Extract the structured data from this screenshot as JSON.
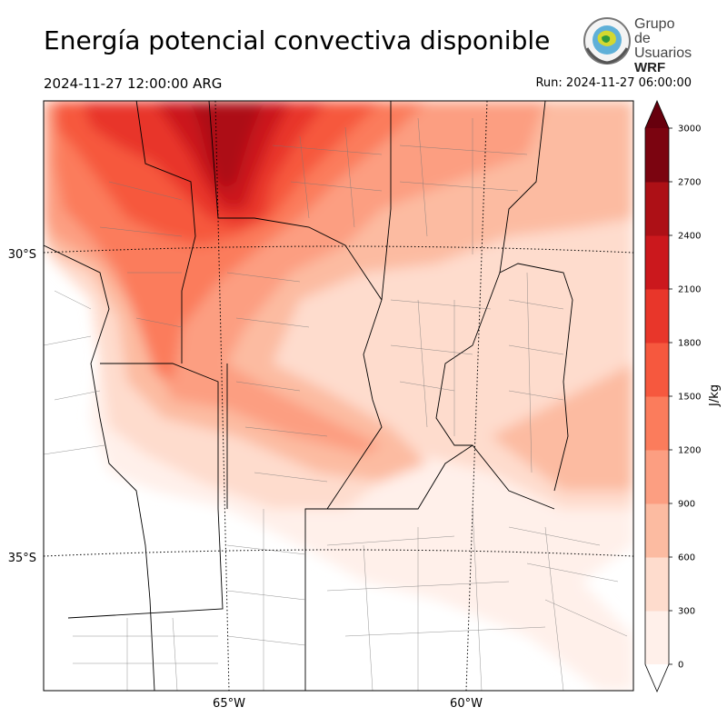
{
  "header": {
    "title": "Energía potencial convectiva disponible",
    "valid_time": "2024-11-27 12:00:00 ARG",
    "run_time": "Run: 2024-11-27 06:00:00"
  },
  "logo": {
    "line1": "Grupo de",
    "line2": "Usuarios",
    "line3": "WRF"
  },
  "map": {
    "lon_labels": [
      "65°W",
      "60°W"
    ],
    "lat_labels": [
      "30°S",
      "35°S"
    ]
  },
  "colorbar": {
    "unit": "J/kg",
    "ticks": [
      "0",
      "300",
      "600",
      "900",
      "1200",
      "1500",
      "1800",
      "2100",
      "2400",
      "2700",
      "3000"
    ],
    "colors": [
      "#fff0ea",
      "#fedccd",
      "#fcbba1",
      "#fc9e81",
      "#fb7c5c",
      "#f6583e",
      "#e8362a",
      "#cb181d",
      "#ad1016",
      "#7b0410"
    ]
  }
}
